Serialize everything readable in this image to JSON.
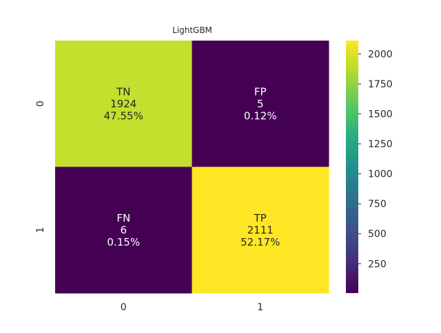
{
  "chart_data": {
    "type": "heatmap",
    "title": "LightGBM",
    "xlabel": "",
    "ylabel": "",
    "x_categories": [
      "0",
      "1"
    ],
    "y_categories": [
      "0",
      "1"
    ],
    "values": [
      [
        1924,
        5
      ],
      [
        6,
        2111
      ]
    ],
    "annotations": [
      [
        {
          "label": "TN",
          "count": "1924",
          "percent": "47.55%"
        },
        {
          "label": "FP",
          "count": "5",
          "percent": "0.12%"
        }
      ],
      [
        {
          "label": "FN",
          "count": "6",
          "percent": "0.15%"
        },
        {
          "label": "TP",
          "count": "2111",
          "percent": "52.17%"
        }
      ]
    ],
    "colormap": "viridis",
    "colorbar": {
      "range": [
        5,
        2111
      ],
      "ticks": [
        250,
        500,
        750,
        1000,
        1250,
        1500,
        1750,
        2000
      ],
      "tick_labels": [
        "250",
        "500",
        "750",
        "1000",
        "1250",
        "1500",
        "1750",
        "2000"
      ]
    }
  }
}
